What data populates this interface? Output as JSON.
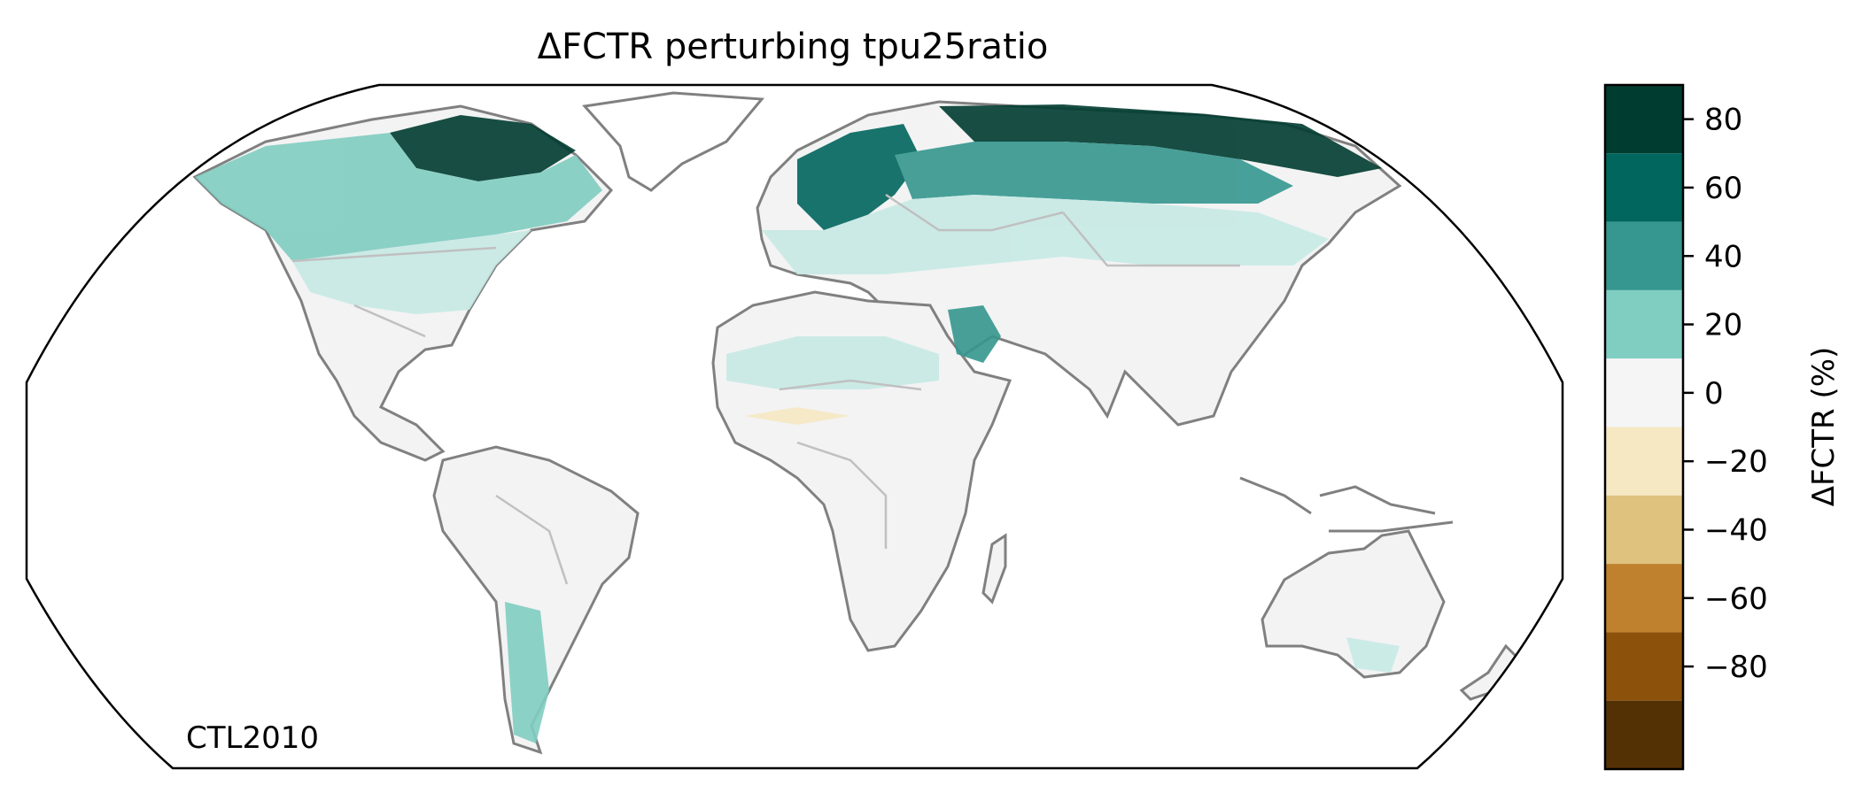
{
  "title": "ΔFCTR perturbing tpu25ratio",
  "corner_label": "CTL2010",
  "colorbar": {
    "label": "ΔFCTR (%)",
    "ticks": [
      "80",
      "60",
      "40",
      "20",
      "0",
      "−20",
      "−40",
      "−60",
      "−80"
    ],
    "bins": [
      {
        "range": [
          70,
          90
        ],
        "color": "#003c30"
      },
      {
        "range": [
          50,
          70
        ],
        "color": "#01665e"
      },
      {
        "range": [
          30,
          50
        ],
        "color": "#35978f"
      },
      {
        "range": [
          10,
          30
        ],
        "color": "#80cdc1"
      },
      {
        "range": [
          -10,
          10
        ],
        "color": "#f5f5f5"
      },
      {
        "range": [
          -30,
          -10
        ],
        "color": "#f6e8c3"
      },
      {
        "range": [
          -50,
          -30
        ],
        "color": "#dfc27d"
      },
      {
        "range": [
          -70,
          -50
        ],
        "color": "#bf812d"
      },
      {
        "range": [
          -90,
          -70
        ],
        "color": "#8c510a"
      },
      {
        "range": [
          -110,
          -90
        ],
        "color": "#543005"
      }
    ]
  },
  "map": {
    "projection": "Robinson",
    "variable": "ΔFCTR",
    "coastline_color": "#808080",
    "border_color": "#c0c0c0",
    "regions": [
      {
        "name": "northern-canada",
        "value": 80
      },
      {
        "name": "canada",
        "value": 40
      },
      {
        "name": "usa",
        "value": 20
      },
      {
        "name": "scandinavia",
        "value": 60
      },
      {
        "name": "russia",
        "value": 40
      },
      {
        "name": "europe",
        "value": 20
      },
      {
        "name": "middle-east",
        "value": 40
      },
      {
        "name": "sahel",
        "value": -5
      },
      {
        "name": "southern-chile",
        "value": 20
      },
      {
        "name": "australia",
        "value": 0
      }
    ]
  }
}
